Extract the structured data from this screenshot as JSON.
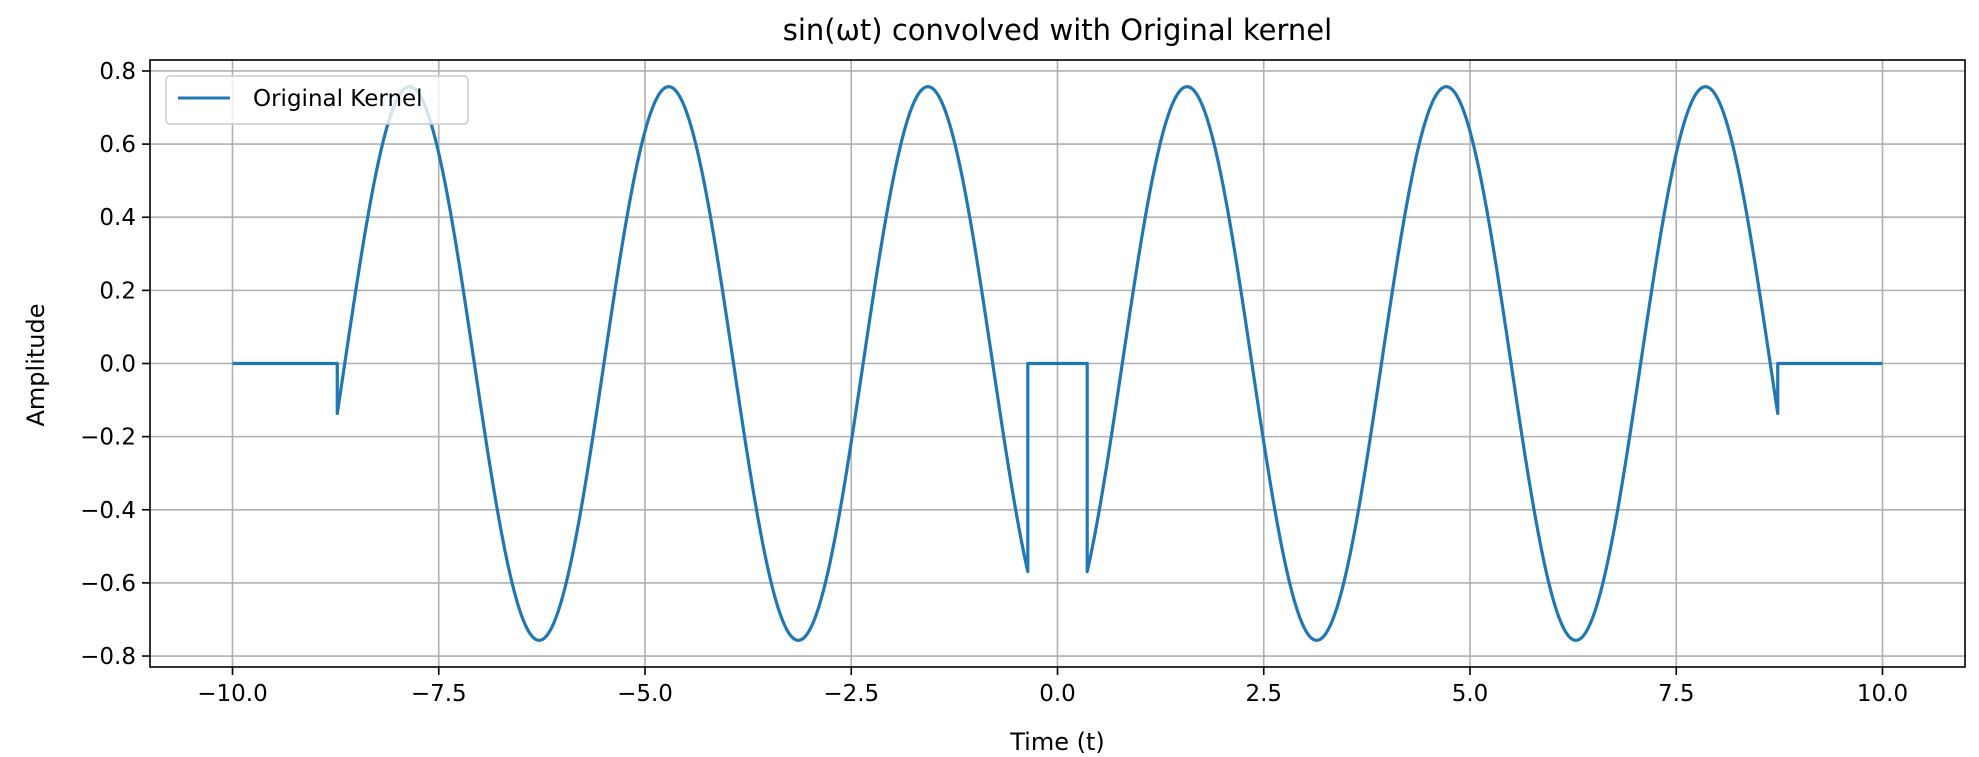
{
  "chart_data": {
    "type": "line",
    "title": "sin(ωt) convolved with Original kernel",
    "xlabel": "Time (t)",
    "ylabel": "Amplitude",
    "xlim": [
      -11.0,
      11.0
    ],
    "ylim": [
      -0.83,
      0.83
    ],
    "xticks": [
      -10.0,
      -7.5,
      -5.0,
      -2.5,
      0.0,
      2.5,
      5.0,
      7.5,
      10.0
    ],
    "xtick_labels": [
      "−10.0",
      "−7.5",
      "−5.0",
      "−2.5",
      "0.0",
      "2.5",
      "5.0",
      "7.5",
      "10.0"
    ],
    "yticks": [
      -0.8,
      -0.6,
      -0.4,
      -0.2,
      0.0,
      0.2,
      0.4,
      0.6,
      0.8
    ],
    "ytick_labels": [
      "−0.8",
      "−0.6",
      "−0.4",
      "−0.2",
      "0.0",
      "0.2",
      "0.4",
      "0.6",
      "0.8"
    ],
    "grid": true,
    "legend_position": "top-left",
    "series": [
      {
        "name": "Original Kernel",
        "color": "#1f77b4",
        "amplitude": 0.757,
        "angular_frequency": 2.0,
        "phase": -1.5708,
        "segments": [
          {
            "kind": "constant",
            "value": 0.0,
            "x": [
              -10.0,
              -8.73
            ]
          },
          {
            "kind": "wave",
            "x": [
              -8.73,
              -0.36
            ]
          },
          {
            "kind": "constant",
            "value": 0.0,
            "x": [
              -0.36,
              0.36
            ]
          },
          {
            "kind": "wave",
            "x": [
              0.36,
              8.73
            ]
          },
          {
            "kind": "constant",
            "value": 0.0,
            "x": [
              8.73,
              10.0
            ]
          }
        ]
      }
    ]
  }
}
